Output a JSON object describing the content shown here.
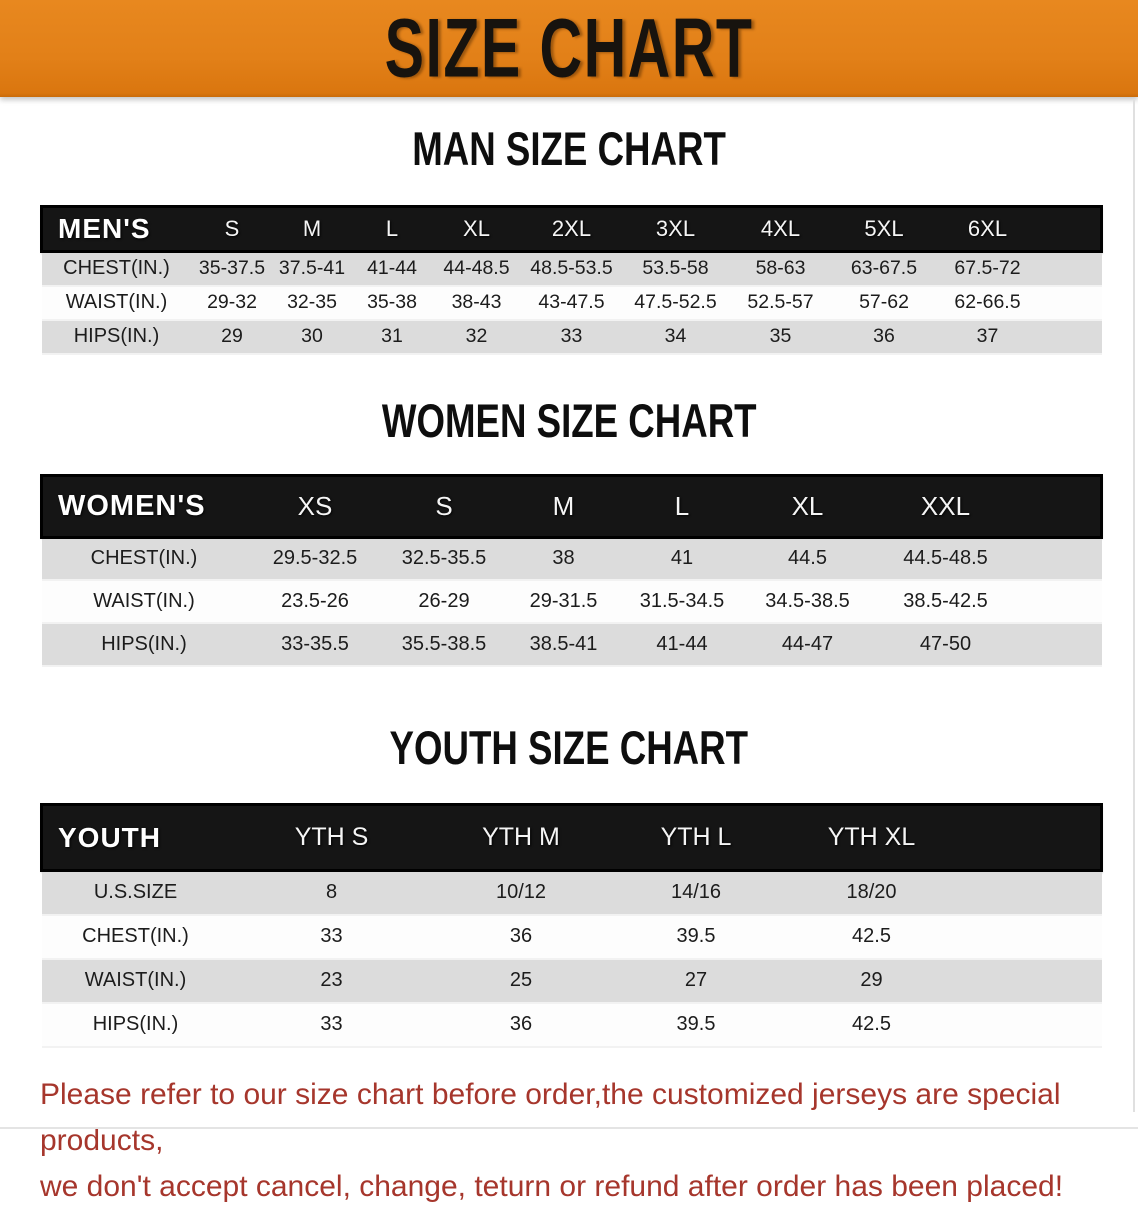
{
  "banner": {
    "title": "SIZE CHART"
  },
  "colors": {
    "banner_orange": "#E28018",
    "header_black": "#151515",
    "row_gray": "#DCDCDC",
    "row_white": "#FDFDFD",
    "footer_red": "#A6362C"
  },
  "sections": [
    {
      "id": "men",
      "title": "MAN SIZE CHART",
      "corner_label": "MEN'S",
      "size_columns": [
        "S",
        "M",
        "L",
        "XL",
        "2XL",
        "3XL",
        "4XL",
        "5XL",
        "6XL"
      ],
      "rows": [
        {
          "label": "CHEST(IN.)",
          "values": [
            "35-37.5",
            "37.5-41",
            "41-44",
            "44-48.5",
            "48.5-53.5",
            "53.5-58",
            "58-63",
            "63-67.5",
            "67.5-72"
          ]
        },
        {
          "label": "WAIST(IN.)",
          "values": [
            "29-32",
            "32-35",
            "35-38",
            "38-43",
            "43-47.5",
            "47.5-52.5",
            "52.5-57",
            "57-62",
            "62-66.5"
          ]
        },
        {
          "label": "HIPS(IN.)",
          "values": [
            "29",
            "30",
            "31",
            "32",
            "33",
            "34",
            "35",
            "36",
            "37"
          ]
        }
      ]
    },
    {
      "id": "women",
      "title": "WOMEN SIZE CHART",
      "corner_label": "WOMEN'S",
      "size_columns": [
        "XS",
        "S",
        "M",
        "L",
        "XL",
        "XXL"
      ],
      "rows": [
        {
          "label": "CHEST(IN.)",
          "values": [
            "29.5-32.5",
            "32.5-35.5",
            "38",
            "41",
            "44.5",
            "44.5-48.5"
          ]
        },
        {
          "label": "WAIST(IN.)",
          "values": [
            "23.5-26",
            "26-29",
            "29-31.5",
            "31.5-34.5",
            "34.5-38.5",
            "38.5-42.5"
          ]
        },
        {
          "label": "HIPS(IN.)",
          "values": [
            "33-35.5",
            "35.5-38.5",
            "38.5-41",
            "41-44",
            "44-47",
            "47-50"
          ]
        }
      ]
    },
    {
      "id": "youth",
      "title": "YOUTH SIZE CHART",
      "corner_label": "YOUTH",
      "size_columns": [
        "YTH S",
        "YTH M",
        "YTH L",
        "YTH XL"
      ],
      "rows": [
        {
          "label": "U.S.SIZE",
          "values": [
            "8",
            "10/12",
            "14/16",
            "18/20"
          ]
        },
        {
          "label": "CHEST(IN.)",
          "values": [
            "33",
            "36",
            "39.5",
            "42.5"
          ]
        },
        {
          "label": "WAIST(IN.)",
          "values": [
            "23",
            "25",
            "27",
            "29"
          ]
        },
        {
          "label": "HIPS(IN.)",
          "values": [
            "33",
            "36",
            "39.5",
            "42.5"
          ]
        }
      ]
    }
  ],
  "footer": {
    "line1": "Please refer to our size chart before order,the customized jerseys are special products,",
    "line2": "we don't accept cancel, change, teturn or refund after order has been placed!"
  }
}
